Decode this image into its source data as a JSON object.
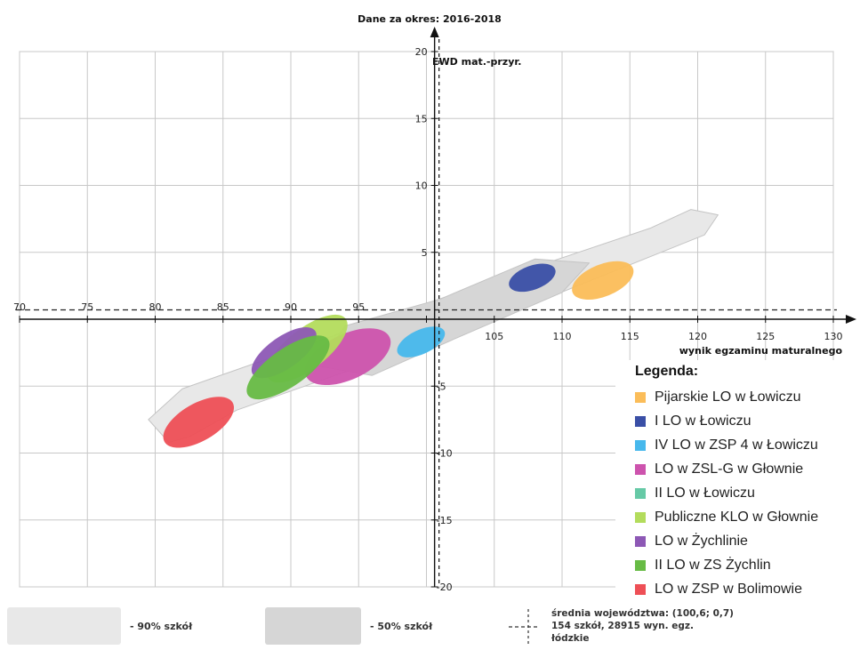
{
  "chart_data": {
    "type": "scatter",
    "title": "Dane za okres: 2016-2018",
    "xlabel": "wynik egzaminu maturalnego",
    "ylabel": "EWD mat.-przyr.",
    "xlim": [
      70,
      130
    ],
    "ylim": [
      -20,
      20
    ],
    "xticks": [
      "70",
      "75",
      "80",
      "85",
      "90",
      "95",
      "100",
      "105",
      "110",
      "115",
      "120",
      "125",
      "130"
    ],
    "yticks": [
      "-20",
      "-15",
      "-10",
      "-5",
      "0",
      "5",
      "10",
      "15",
      "20"
    ],
    "grid": true,
    "reference": {
      "x": 100.6,
      "y": 0.7,
      "style": "dashed"
    },
    "regions": [
      {
        "name": "90% szkół",
        "color": "#e8e8e8",
        "center": [
          100.6,
          0.4
        ],
        "polygon": [
          [
            81,
            -9.2
          ],
          [
            79.5,
            -7.5
          ],
          [
            82,
            -5.2
          ],
          [
            98,
            0.5
          ],
          [
            116.5,
            6.8
          ],
          [
            119.5,
            8.2
          ],
          [
            121.5,
            7.8
          ],
          [
            120.5,
            6.3
          ],
          [
            105,
            0
          ],
          [
            86,
            -6.8
          ],
          [
            82.5,
            -8.8
          ]
        ]
      },
      {
        "name": "50% szkół",
        "color": "#d6d6d6",
        "polygon": [
          [
            92,
            -3.5
          ],
          [
            94,
            -0.5
          ],
          [
            101,
            1.5
          ],
          [
            108,
            4.5
          ],
          [
            112,
            4.2
          ],
          [
            110,
            2
          ],
          [
            102,
            -1.5
          ],
          [
            96,
            -4.2
          ]
        ]
      }
    ],
    "series": [
      {
        "name": "Pijarskie LO w Łowiczu",
        "color": "#fbbd59",
        "x": 113,
        "y": 2.9,
        "rx": 2.4,
        "ry": 1.2,
        "angle": -22
      },
      {
        "name": "I LO w Łowiczu",
        "color": "#3a4fa6",
        "x": 107.8,
        "y": 3.1,
        "rx": 1.8,
        "ry": 0.9,
        "angle": -20
      },
      {
        "name": "IV LO w ZSP 4 w Łowiczu",
        "color": "#47b8ec",
        "x": 99.6,
        "y": -1.7,
        "rx": 1.9,
        "ry": 0.9,
        "angle": -25
      },
      {
        "name": "LO w ZSL-G w Głownie",
        "color": "#cd53ad",
        "x": 94.2,
        "y": -2.8,
        "rx": 3.4,
        "ry": 1.7,
        "angle": -25
      },
      {
        "name": "II LO w Łowiczu",
        "color": "#66c9a6",
        "x": null,
        "y": null
      },
      {
        "name": "Publiczne KLO w Głownie",
        "color": "#b3dc5c",
        "x": 91.2,
        "y": -2.2,
        "rx": 3.6,
        "ry": 1.5,
        "angle": -38
      },
      {
        "name": "LO w Żychlinie",
        "color": "#8d58b5",
        "x": 89.5,
        "y": -2.5,
        "rx": 2.8,
        "ry": 1.2,
        "angle": -35
      },
      {
        "name": "II LO w ZS Żychlin",
        "color": "#67bb45",
        "x": 89.8,
        "y": -3.6,
        "rx": 3.6,
        "ry": 1.4,
        "angle": -35
      },
      {
        "name": "LO w ZSP w Bolimowie",
        "color": "#ee4f56",
        "x": 83.2,
        "y": -7.7,
        "rx": 2.9,
        "ry": 1.4,
        "angle": -30
      }
    ]
  },
  "legend": {
    "title": "Legenda:",
    "items": [
      {
        "label": "Pijarskie LO w Łowiczu",
        "color": "#fbbd59"
      },
      {
        "label": "I LO w Łowiczu",
        "color": "#3a4fa6"
      },
      {
        "label": "IV LO w ZSP 4 w Łowiczu",
        "color": "#47b8ec"
      },
      {
        "label": "LO w ZSL-G w Głownie",
        "color": "#cd53ad"
      },
      {
        "label": "II LO w Łowiczu",
        "color": "#66c9a6"
      },
      {
        "label": "Publiczne KLO w Głownie",
        "color": "#b3dc5c"
      },
      {
        "label": "LO w Żychlinie",
        "color": "#8d58b5"
      },
      {
        "label": "II LO w ZS Żychlin",
        "color": "#67bb45"
      },
      {
        "label": "LO w ZSP w Bolimowie",
        "color": "#ee4f56"
      }
    ]
  },
  "footer": {
    "label_90": "- 90% szkół",
    "label_50": "- 50% szkół",
    "avg_line1": "średnia województwa: (100,6; 0,7)",
    "avg_line2": "154 szkół, 28915 wyn. egz.",
    "avg_line3": "łódzkie"
  }
}
